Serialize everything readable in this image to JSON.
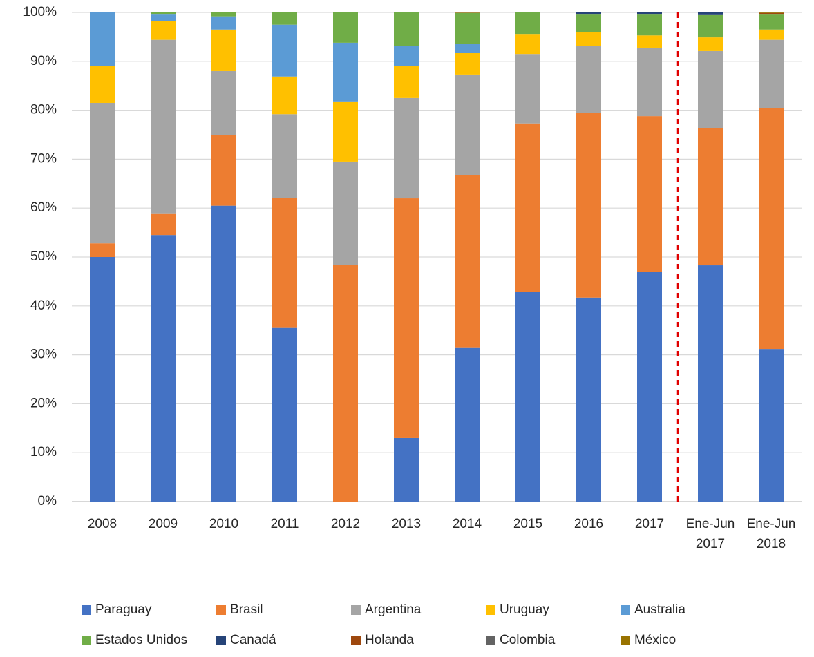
{
  "chart_data": {
    "type": "stacked-bar",
    "categories": [
      "2008",
      "2009",
      "2010",
      "2011",
      "2012",
      "2013",
      "2014",
      "2015",
      "2016",
      "2017",
      "Ene-Jun 2017",
      "Ene-Jun 2018"
    ],
    "series": [
      {
        "name": "Paraguay",
        "color": "#4472c4",
        "values": [
          50.0,
          54.5,
          60.5,
          35.5,
          0,
          13.0,
          31.4,
          42.8,
          41.7,
          47.0,
          48.3,
          31.2
        ]
      },
      {
        "name": "Brasil",
        "color": "#ed7d31",
        "values": [
          2.8,
          4.3,
          14.4,
          26.6,
          48.4,
          49.0,
          35.3,
          34.5,
          37.8,
          31.8,
          28.0,
          49.2
        ]
      },
      {
        "name": "Argentina",
        "color": "#a5a5a5",
        "values": [
          28.7,
          35.6,
          13.1,
          17.1,
          21.1,
          20.5,
          20.6,
          14.2,
          13.7,
          14.0,
          15.8,
          14.0
        ]
      },
      {
        "name": "Uruguay",
        "color": "#ffc000",
        "values": [
          7.6,
          3.8,
          8.5,
          7.7,
          12.3,
          6.5,
          4.4,
          4.1,
          2.8,
          2.5,
          2.8,
          2.1
        ]
      },
      {
        "name": "Australia",
        "color": "#5b9bd5",
        "values": [
          10.9,
          1.5,
          2.7,
          10.6,
          12.0,
          4.1,
          1.9,
          0,
          0,
          0,
          0,
          0
        ]
      },
      {
        "name": "Estados Unidos",
        "color": "#70ad47",
        "values": [
          0,
          0.3,
          0.8,
          2.5,
          6.2,
          6.9,
          6.3,
          4.4,
          3.7,
          4.4,
          4.7,
          3.2
        ]
      },
      {
        "name": "Canadá",
        "color": "#264478",
        "values": [
          0,
          0,
          0,
          0,
          0,
          0,
          0,
          0,
          0.3,
          0.3,
          0.4,
          0
        ]
      },
      {
        "name": "Holanda",
        "color": "#9e480e",
        "values": [
          0,
          0,
          0,
          0,
          0,
          0,
          0.05,
          0,
          0,
          0,
          0,
          0.2
        ]
      },
      {
        "name": "Colombia",
        "color": "#636363",
        "values": [
          0,
          0,
          0,
          0,
          0,
          0,
          0,
          0,
          0,
          0,
          0,
          0
        ]
      },
      {
        "name": "México",
        "color": "#997300",
        "values": [
          0,
          0,
          0,
          0,
          0,
          0,
          0.05,
          0,
          0,
          0,
          0,
          0.1
        ]
      }
    ],
    "ylim": [
      0,
      100
    ],
    "yticks": [
      {
        "value": 0,
        "label": "0%"
      },
      {
        "value": 10,
        "label": "10%"
      },
      {
        "value": 20,
        "label": "20%"
      },
      {
        "value": 30,
        "label": "30%"
      },
      {
        "value": 40,
        "label": "40%"
      },
      {
        "value": 50,
        "label": "50%"
      },
      {
        "value": 60,
        "label": "60%"
      },
      {
        "value": 70,
        "label": "70%"
      },
      {
        "value": 80,
        "label": "80%"
      },
      {
        "value": 90,
        "label": "90%"
      },
      {
        "value": 100,
        "label": "100%"
      }
    ],
    "grid": true
  }
}
